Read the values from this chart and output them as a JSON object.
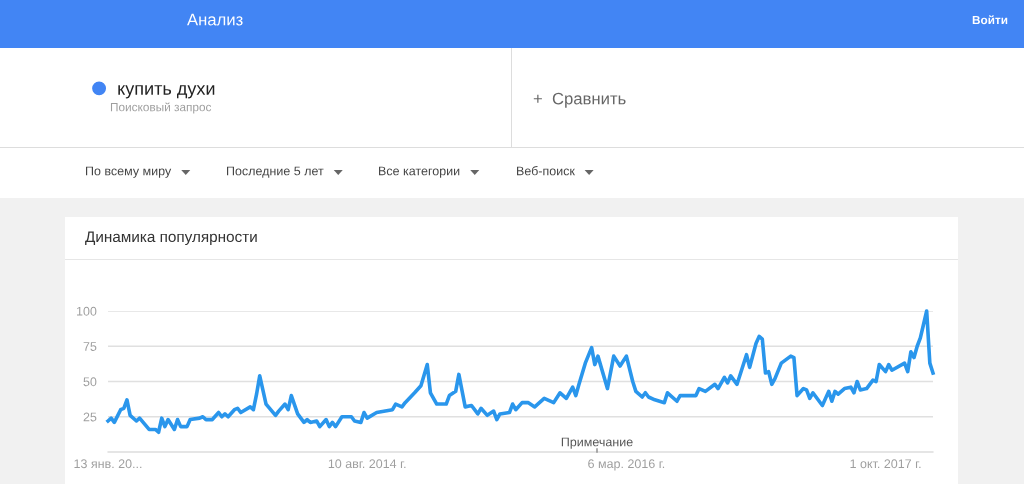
{
  "chart_data": {
    "type": "line",
    "title": "Динамика популярности",
    "annotations": [
      "Анализ",
      "Войти",
      "Поисковый запрос",
      "+  Сравнить",
      "По всему миру",
      "Последние 5 лет",
      "Все категории",
      "Веб-поиск",
      "Примечание"
    ],
    "x": [
      "2013-01-13",
      "2013-01-20",
      "2013-01-27",
      "2013-02-10",
      "2013-02-17",
      "2013-02-24",
      "2013-03-03",
      "2013-03-17",
      "2013-03-24",
      "2013-04-14",
      "2013-04-28",
      "2013-05-05",
      "2013-05-12",
      "2013-05-19",
      "2013-05-26",
      "2013-06-09",
      "2013-06-16",
      "2013-06-23",
      "2013-07-07",
      "2013-07-14",
      "2013-08-04",
      "2013-08-11",
      "2013-08-18",
      "2013-09-01",
      "2013-09-15",
      "2013-09-22",
      "2013-09-29",
      "2013-10-06",
      "2013-10-20",
      "2013-10-27",
      "2013-11-03",
      "2013-11-24",
      "2013-12-01",
      "2013-12-08",
      "2013-12-15",
      "2013-12-29",
      "2014-01-19",
      "2014-01-26",
      "2014-02-09",
      "2014-02-16",
      "2014-02-23",
      "2014-03-09",
      "2014-03-23",
      "2014-03-30",
      "2014-04-06",
      "2014-04-20",
      "2014-04-27",
      "2014-05-11",
      "2014-05-18",
      "2014-05-25",
      "2014-06-01",
      "2014-06-15",
      "2014-07-06",
      "2014-07-13",
      "2014-07-27",
      "2014-08-03",
      "2014-08-10",
      "2014-08-31",
      "2014-10-05",
      "2014-10-12",
      "2014-10-26",
      "2014-11-02",
      "2014-11-23",
      "2014-12-07",
      "2014-12-21",
      "2014-12-28",
      "2015-01-11",
      "2015-02-01",
      "2015-02-08",
      "2015-02-22",
      "2015-03-01",
      "2015-03-15",
      "2015-03-29",
      "2015-04-12",
      "2015-04-19",
      "2015-05-03",
      "2015-05-17",
      "2015-05-24",
      "2015-05-31",
      "2015-06-21",
      "2015-06-28",
      "2015-07-05",
      "2015-07-19",
      "2015-08-02",
      "2015-08-16",
      "2015-09-06",
      "2015-09-27",
      "2015-10-11",
      "2015-10-25",
      "2015-11-08",
      "2015-11-15",
      "2015-11-22",
      "2015-12-06",
      "2015-12-20",
      "2015-12-27",
      "2016-01-03",
      "2016-01-24",
      "2016-02-07",
      "2016-02-21",
      "2016-03-06",
      "2016-03-20",
      "2016-03-27",
      "2016-04-10",
      "2016-04-17",
      "2016-04-24",
      "2016-05-08",
      "2016-05-29",
      "2016-06-05",
      "2016-06-26",
      "2016-07-03",
      "2016-08-07",
      "2016-08-14",
      "2016-08-28",
      "2016-09-18",
      "2016-09-25",
      "2016-10-09",
      "2016-10-16",
      "2016-10-23",
      "2016-11-06",
      "2016-11-27",
      "2016-12-04",
      "2016-12-18",
      "2016-12-25",
      "2017-01-01",
      "2017-01-08",
      "2017-01-15",
      "2017-01-22",
      "2017-01-29",
      "2017-02-12",
      "2017-03-05",
      "2017-03-12",
      "2017-03-19",
      "2017-04-02",
      "2017-04-09",
      "2017-04-16",
      "2017-04-23",
      "2017-05-14",
      "2017-05-28",
      "2017-06-04",
      "2017-06-11",
      "2017-06-18",
      "2017-07-02",
      "2017-07-16",
      "2017-07-23",
      "2017-07-30",
      "2017-08-06",
      "2017-08-20",
      "2017-09-03",
      "2017-09-10",
      "2017-09-17",
      "2017-10-01",
      "2017-10-08",
      "2017-10-15",
      "2017-11-12",
      "2017-11-19",
      "2017-11-26",
      "2017-12-03",
      "2017-12-10",
      "2017-12-17",
      "2017-12-31",
      "2018-01-07",
      "2018-01-14"
    ],
    "series": [
      {
        "name": "купить духи",
        "color": "#2a96ec",
        "values": [
          22,
          24,
          21,
          30,
          31,
          37,
          26,
          22,
          24,
          16,
          16,
          14,
          24,
          18,
          23,
          16,
          23,
          18,
          18,
          23,
          24,
          25,
          23,
          23,
          28,
          25,
          27,
          25,
          30,
          31,
          28,
          32,
          30,
          41,
          54,
          34,
          26,
          29,
          34,
          30,
          40,
          27,
          21,
          23,
          21,
          22,
          18,
          23,
          18,
          21,
          18,
          25,
          25,
          22,
          21,
          28,
          24,
          28,
          30,
          34,
          32,
          35,
          42,
          47,
          62,
          42,
          34,
          34,
          40,
          43,
          55,
          32,
          33,
          27,
          31,
          26,
          29,
          23,
          27,
          28,
          34,
          30,
          35,
          35,
          32,
          38,
          35,
          42,
          38,
          46,
          40,
          48,
          63,
          74,
          62,
          68,
          45,
          68,
          61,
          68,
          50,
          43,
          39,
          42,
          39,
          37,
          35,
          42,
          36,
          40,
          40,
          45,
          43,
          48,
          45,
          53,
          49,
          54,
          48,
          69,
          60,
          77,
          82,
          80,
          56,
          57,
          48,
          52,
          63,
          68,
          67,
          40,
          45,
          44,
          38,
          42,
          33,
          43,
          36,
          43,
          41,
          45,
          46,
          42,
          50,
          44,
          45,
          51,
          50,
          62,
          57,
          62,
          58,
          63,
          57,
          71,
          67,
          75,
          81,
          100,
          63,
          56
        ]
      }
    ],
    "xlim": [
      "2013-01-13",
      "2018-01-14"
    ],
    "xticks": [
      {
        "value": "2013-01-13",
        "label": "13 янв. 20..."
      },
      {
        "value": "2014-08-10",
        "label": "10 авг. 2014 г."
      },
      {
        "value": "2016-03-06",
        "label": "6 мар. 2016 г."
      },
      {
        "value": "2017-10-01",
        "label": "1 окт. 2017 г."
      }
    ],
    "ylim": [
      0,
      100
    ],
    "yticks": [
      25,
      50,
      75,
      100
    ],
    "grid": "y",
    "legend": "top left",
    "marker": "none",
    "line_style": "solid"
  }
}
